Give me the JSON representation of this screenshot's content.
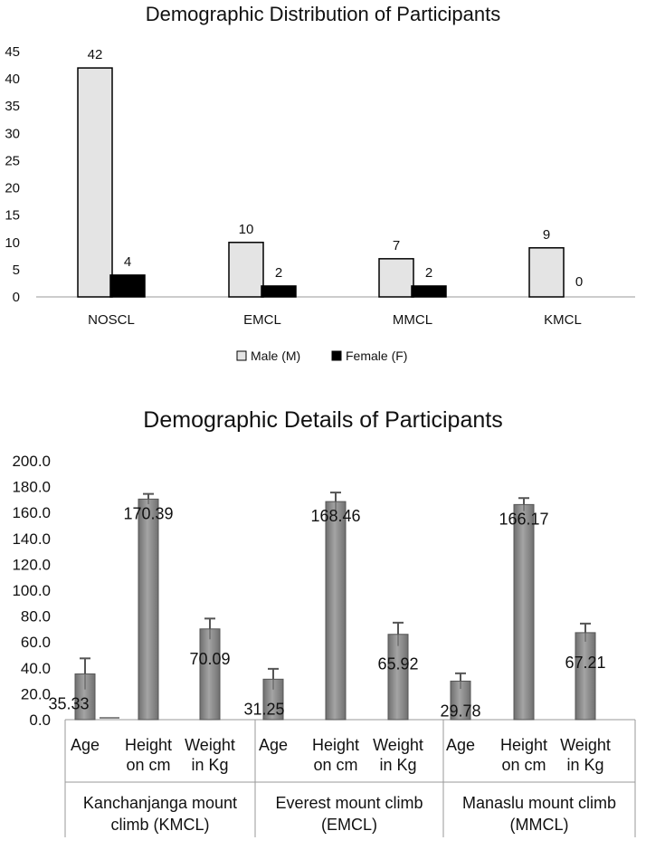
{
  "chart_data": [
    {
      "type": "bar",
      "title": "Demographic Distribution of Participants",
      "xlabel": "",
      "ylabel": "",
      "categories": [
        "NOSCL",
        "EMCL",
        "MMCL",
        "KMCL"
      ],
      "series": [
        {
          "name": "Male (M)",
          "values": [
            42,
            10,
            7,
            9
          ],
          "color": "#e4e4e4"
        },
        {
          "name": "Female (F)",
          "values": [
            4,
            2,
            2,
            0
          ],
          "color": "#000000"
        }
      ],
      "ylim": [
        0,
        45
      ],
      "yticks": [
        0,
        5,
        10,
        15,
        20,
        25,
        30,
        35,
        40,
        45
      ],
      "grid": false,
      "legend": "bottom"
    },
    {
      "type": "bar",
      "title": "Demographic Details of Participants",
      "xlabel": "",
      "ylabel": "",
      "groups": [
        {
          "label": "Kanchanjanga mount climb (KMCL)",
          "label_lines": [
            "Kanchanjanga mount",
            "climb (KMCL)"
          ]
        },
        {
          "label": "Everest mount climb (EMCL)",
          "label_lines": [
            "Everest mount climb",
            "(EMCL)"
          ]
        },
        {
          "label": "Manaslu mount climb (MMCL)",
          "label_lines": [
            "Manaslu mount climb",
            "(MMCL)"
          ]
        }
      ],
      "subcategories": [
        {
          "label": "Age",
          "lines": [
            "Age"
          ]
        },
        {
          "label": "Height on cm",
          "lines": [
            "Height",
            "on cm"
          ]
        },
        {
          "label": "Weight in Kg",
          "lines": [
            "Weight",
            "in Kg"
          ]
        }
      ],
      "values": [
        [
          35.33,
          170.39,
          70.09
        ],
        [
          31.25,
          168.46,
          65.92
        ],
        [
          29.78,
          166.17,
          67.21
        ]
      ],
      "value_labels": [
        [
          "35.33",
          "170.39",
          "70.09"
        ],
        [
          "31.25",
          "168.46",
          "65.92"
        ],
        [
          "29.78",
          "166.17",
          "67.21"
        ]
      ],
      "errors": [
        [
          12,
          4,
          8
        ],
        [
          8,
          7,
          9
        ],
        [
          6,
          5,
          7
        ]
      ],
      "ylim": [
        0,
        200
      ],
      "yticks": [
        "0.0",
        "20.0",
        "40.0",
        "60.0",
        "80.0",
        "100.0",
        "120.0",
        "140.0",
        "160.0",
        "180.0",
        "200.0"
      ],
      "bar_color": "#8a8a8a",
      "grid": false
    }
  ]
}
